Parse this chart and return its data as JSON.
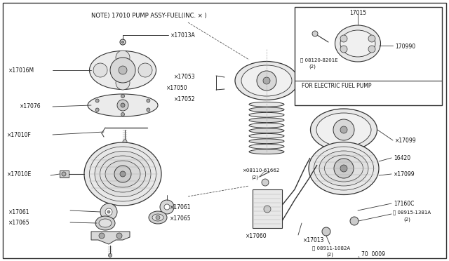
{
  "fig_width": 6.4,
  "fig_height": 3.72,
  "dpi": 100,
  "bg_color": "#ffffff",
  "border_color": "#000000",
  "note_text": "NOTE) 17010 PUMP ASSY-FUEL(INC. × )",
  "inset_label": "FOR ELECTRIC FUEL PUMP",
  "footer_text": "‸ 70  0009",
  "line_color": "#333333",
  "dash_color": "#555555"
}
